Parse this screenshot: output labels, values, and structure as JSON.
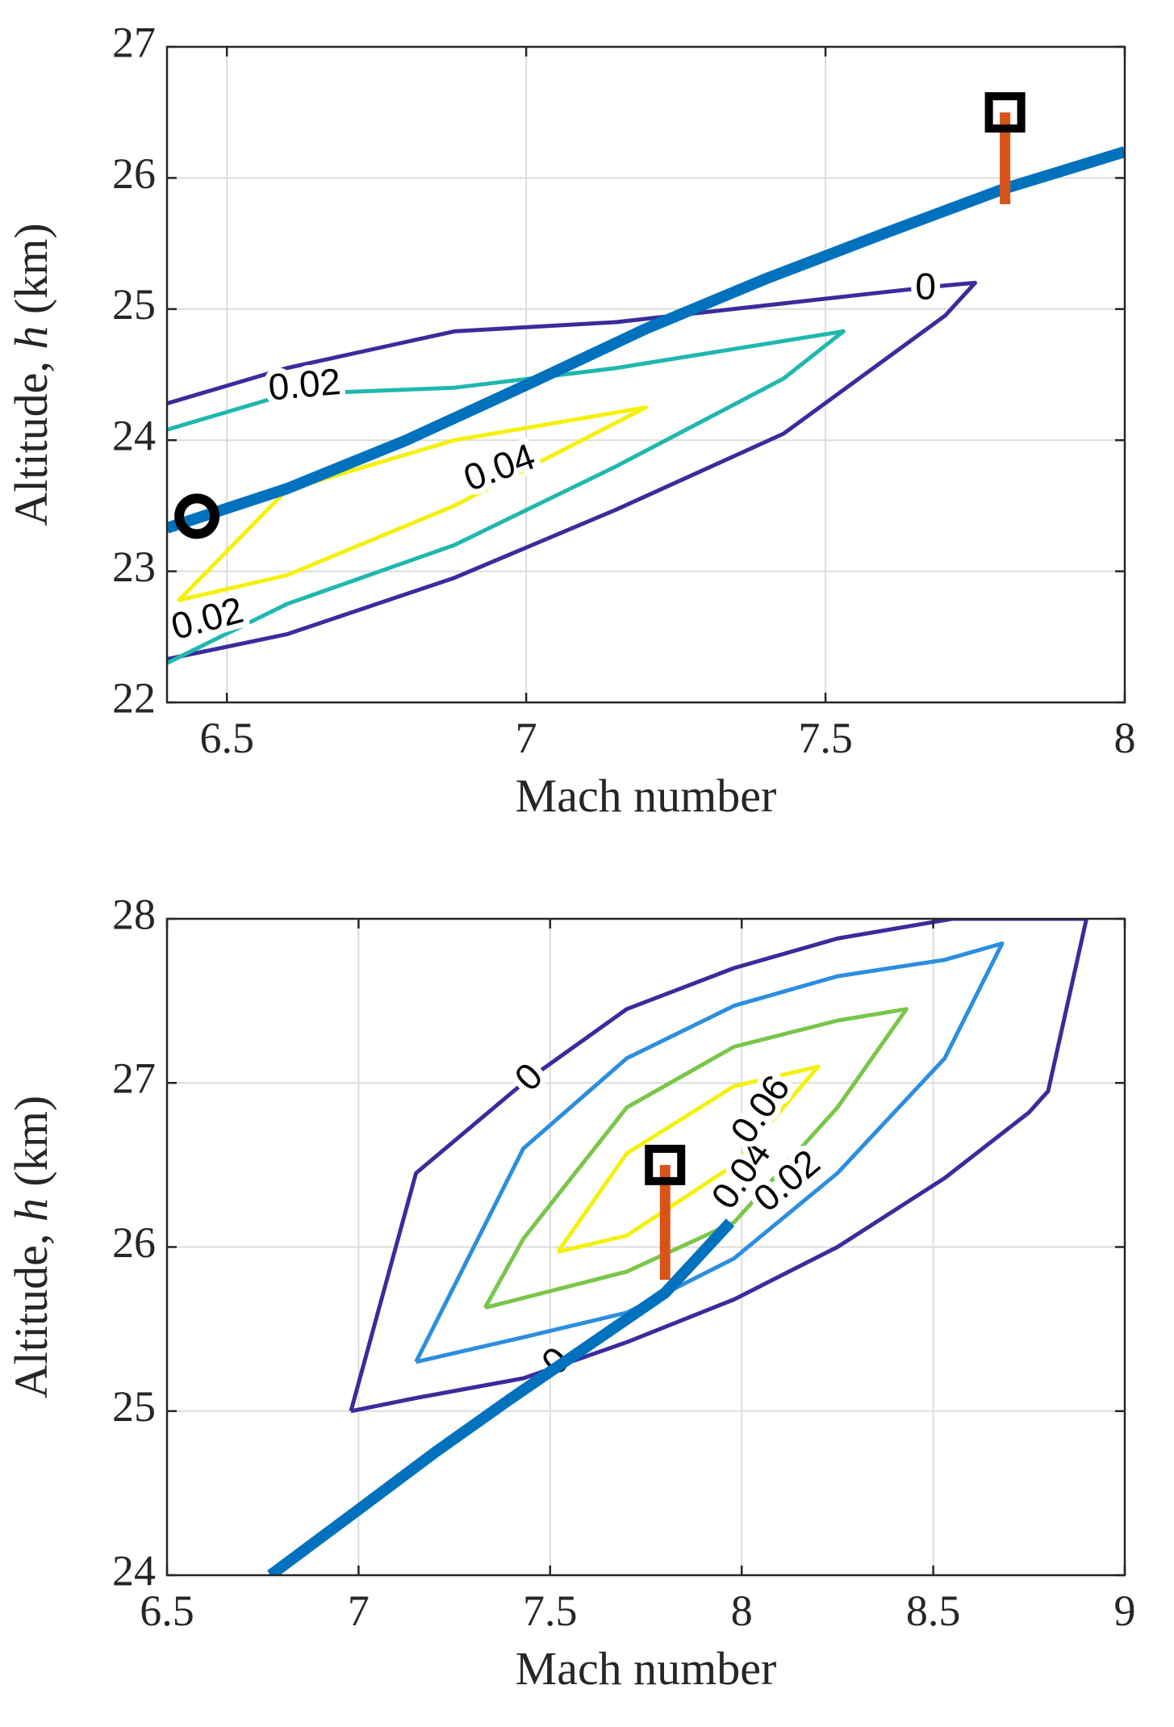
{
  "chart_data": [
    {
      "type": "line",
      "xlabel": "Mach number",
      "ylabel_prefix": "Altitude, ",
      "ylabel_var": "h",
      "ylabel_suffix": " (km)",
      "xlim": [
        6.4,
        8.0
      ],
      "ylim": [
        22,
        27
      ],
      "xticks": [
        6.5,
        7,
        7.5,
        8
      ],
      "xtick_labels": [
        "6.5",
        "7",
        "7.5",
        "8"
      ],
      "yticks": [
        22,
        23,
        24,
        25,
        26,
        27
      ],
      "ytick_labels": [
        "22",
        "23",
        "24",
        "25",
        "26",
        "27"
      ],
      "grid": true,
      "contours": [
        {
          "level": "0",
          "color": "#3a2c9c",
          "points": [
            [
              6.4,
              22.33
            ],
            [
              6.6,
              22.52
            ],
            [
              6.88,
              22.95
            ],
            [
              7.15,
              23.47
            ],
            [
              7.43,
              24.05
            ],
            [
              7.7,
              24.95
            ],
            [
              7.75,
              25.2
            ],
            [
              7.7,
              25.18
            ],
            [
              7.6,
              25.13
            ],
            [
              7.15,
              24.9
            ],
            [
              6.88,
              24.83
            ],
            [
              6.6,
              24.55
            ],
            [
              6.4,
              24.28
            ]
          ]
        },
        {
          "level": "0.02",
          "color": "#1fb8ae",
          "points": [
            [
              6.4,
              22.3
            ],
            [
              6.6,
              22.75
            ],
            [
              6.88,
              23.2
            ],
            [
              7.15,
              23.8
            ],
            [
              7.43,
              24.47
            ],
            [
              7.53,
              24.83
            ],
            [
              7.15,
              24.55
            ],
            [
              6.88,
              24.4
            ],
            [
              6.6,
              24.35
            ],
            [
              6.4,
              24.08
            ]
          ]
        },
        {
          "level": "0.04",
          "color": "#f4f10c",
          "points": [
            [
              6.6,
              23.62
            ],
            [
              6.42,
              22.78
            ],
            [
              6.6,
              22.97
            ],
            [
              6.88,
              23.5
            ],
            [
              7.2,
              24.25
            ],
            [
              6.88,
              24.0
            ],
            [
              6.6,
              23.62
            ]
          ]
        }
      ],
      "contour_labels": [
        {
          "text": "0",
          "x": 7.65,
          "y": 25.15,
          "angle": 0
        },
        {
          "text": "0.02",
          "x": 6.57,
          "y": 24.38,
          "angle": -5
        },
        {
          "text": "0.02",
          "x": 6.41,
          "y": 22.55,
          "angle": -15
        },
        {
          "text": "0.04",
          "x": 6.9,
          "y": 23.68,
          "angle": -20
        }
      ],
      "trajectory": {
        "color": "#0072bd",
        "points": [
          [
            6.4,
            23.33
          ],
          [
            6.6,
            23.63
          ],
          [
            6.8,
            24.0
          ],
          [
            7.0,
            24.42
          ],
          [
            7.2,
            24.85
          ],
          [
            7.4,
            25.23
          ],
          [
            7.6,
            25.58
          ],
          [
            7.8,
            25.92
          ],
          [
            8.0,
            26.2
          ]
        ]
      },
      "start_marker": {
        "shape": "circle",
        "x": 6.45,
        "y": 23.42
      },
      "target_marker": {
        "shape": "square",
        "x": 7.8,
        "y": 26.5
      },
      "target_bar": {
        "color": "#d95319",
        "x": 7.8,
        "y0": 25.8,
        "y1": 26.5
      }
    },
    {
      "type": "line",
      "xlabel": "Mach number",
      "ylabel_prefix": "Altitude, ",
      "ylabel_var": "h",
      "ylabel_suffix": " (km)",
      "xlim": [
        6.5,
        9.0
      ],
      "ylim": [
        24,
        28
      ],
      "xticks": [
        6.5,
        7,
        7.5,
        8,
        8.5,
        9
      ],
      "xtick_labels": [
        "6.5",
        "7",
        "7.5",
        "8",
        "8.5",
        "9"
      ],
      "yticks": [
        24,
        25,
        26,
        27,
        28
      ],
      "ytick_labels": [
        "24",
        "25",
        "26",
        "27",
        "28"
      ],
      "grid": true,
      "contours": [
        {
          "level": "0",
          "color": "#3a2c9c",
          "points": [
            [
              6.98,
              25.0
            ],
            [
              7.15,
              25.08
            ],
            [
              7.43,
              25.2
            ],
            [
              7.7,
              25.42
            ],
            [
              7.98,
              25.68
            ],
            [
              8.25,
              26.0
            ],
            [
              8.53,
              26.42
            ],
            [
              8.75,
              26.82
            ],
            [
              8.8,
              26.95
            ],
            [
              8.9,
              28.0
            ],
            [
              8.55,
              28.0
            ],
            [
              8.25,
              27.88
            ],
            [
              7.98,
              27.7
            ],
            [
              7.7,
              27.45
            ],
            [
              7.43,
              27.0
            ],
            [
              7.15,
              26.45
            ],
            [
              6.98,
              25.0
            ]
          ]
        },
        {
          "level": "0.02",
          "color": "#2b8ee0",
          "points": [
            [
              7.15,
              25.3
            ],
            [
              7.43,
              25.45
            ],
            [
              7.7,
              25.6
            ],
            [
              7.98,
              25.93
            ],
            [
              8.25,
              26.45
            ],
            [
              8.53,
              27.15
            ],
            [
              8.68,
              27.85
            ],
            [
              8.53,
              27.75
            ],
            [
              8.25,
              27.65
            ],
            [
              7.98,
              27.47
            ],
            [
              7.7,
              27.15
            ],
            [
              7.43,
              26.6
            ],
            [
              7.15,
              25.3
            ]
          ]
        },
        {
          "level": "0.04",
          "color": "#79c64a",
          "points": [
            [
              7.33,
              25.63
            ],
            [
              7.7,
              25.85
            ],
            [
              7.98,
              26.15
            ],
            [
              8.25,
              26.85
            ],
            [
              8.43,
              27.45
            ],
            [
              8.25,
              27.38
            ],
            [
              7.98,
              27.22
            ],
            [
              7.7,
              26.85
            ],
            [
              7.43,
              26.05
            ],
            [
              7.33,
              25.63
            ]
          ]
        },
        {
          "level": "0.06",
          "color": "#f4f10c",
          "points": [
            [
              7.52,
              25.97
            ],
            [
              7.7,
              26.07
            ],
            [
              7.98,
              26.5
            ],
            [
              8.2,
              27.1
            ],
            [
              7.98,
              26.98
            ],
            [
              7.7,
              26.57
            ],
            [
              7.52,
              25.97
            ]
          ]
        }
      ],
      "contour_labels": [
        {
          "text": "0",
          "x": 7.43,
          "y": 26.98,
          "angle": -45
        },
        {
          "text": "0",
          "x": 7.5,
          "y": 25.25,
          "angle": -45
        },
        {
          "text": "0.02",
          "x": 8.05,
          "y": 26.25,
          "angle": -40
        },
        {
          "text": "0.04",
          "x": 7.95,
          "y": 26.25,
          "angle": -55
        },
        {
          "text": "0.06",
          "x": 8.0,
          "y": 26.65,
          "angle": -55
        }
      ],
      "trajectory": {
        "color": "#0072bd",
        "points": [
          [
            6.77,
            24.0
          ],
          [
            7.0,
            24.4
          ],
          [
            7.2,
            24.75
          ],
          [
            7.4,
            25.08
          ],
          [
            7.6,
            25.4
          ],
          [
            7.8,
            25.72
          ],
          [
            7.97,
            26.15
          ]
        ]
      },
      "target_marker": {
        "shape": "square",
        "x": 7.8,
        "y": 26.5
      },
      "target_bar": {
        "color": "#d95319",
        "x": 7.8,
        "y0": 25.8,
        "y1": 26.5
      }
    }
  ]
}
